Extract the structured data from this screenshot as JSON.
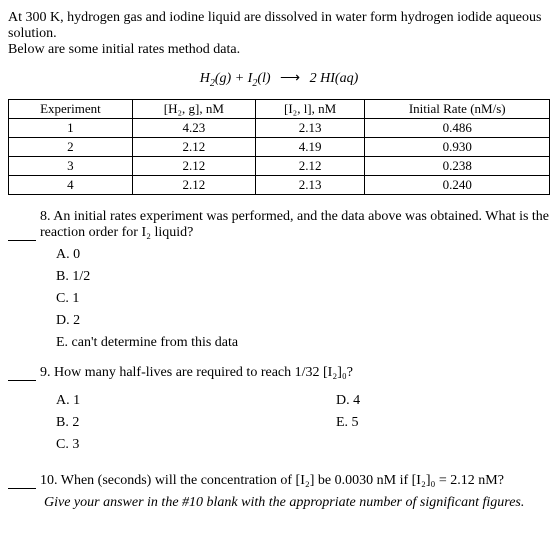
{
  "intro": {
    "line1": "At 300 K, hydrogen gas and iodine liquid are dissolved in water form hydrogen iodide aqueous solution.",
    "line2": "Below are some initial rates method data."
  },
  "equation": {
    "lhs1": "H",
    "lhs1_sub": "2",
    "lhs1_state": "(g)",
    "plus": " + ",
    "lhs2": "I",
    "lhs2_sub": "2",
    "lhs2_state": "(l)",
    "arrow": "⟶",
    "rhs_coef": "2 ",
    "rhs": "HI",
    "rhs_state": "(aq)"
  },
  "table": {
    "headers": {
      "c0": "Experiment",
      "c1": "[H₂, g], nM",
      "c2": "[I₂, l], nM",
      "c3": "Initial Rate (nM/s)"
    },
    "rows": [
      {
        "c0": "1",
        "c1": "4.23",
        "c2": "2.13",
        "c3": "0.486"
      },
      {
        "c0": "2",
        "c1": "2.12",
        "c2": "4.19",
        "c3": "0.930"
      },
      {
        "c0": "3",
        "c1": "2.12",
        "c2": "2.12",
        "c3": "0.238"
      },
      {
        "c0": "4",
        "c1": "2.12",
        "c2": "2.13",
        "c3": "0.240"
      }
    ]
  },
  "q8": {
    "text": "8. An initial rates experiment was performed, and the data above was obtained. What is the reaction order for I₂ liquid?",
    "A": "A. 0",
    "B": "B. 1/2",
    "C": "C. 1",
    "D": "D. 2",
    "E": "E. can't determine from this data"
  },
  "q9": {
    "text": "9. How many half-lives are required to reach 1/32 [I₂]₀?",
    "A": "A. 1",
    "B": "B. 2",
    "C": "C. 3",
    "D": "D. 4",
    "E": "E. 5"
  },
  "q10": {
    "text": "10. When (seconds) will the concentration of [I₂] be 0.0030 nM if [I₂]₀ = 2.12 nM?",
    "note": "Give your answer in the #10 blank with the appropriate number of significant figures."
  }
}
